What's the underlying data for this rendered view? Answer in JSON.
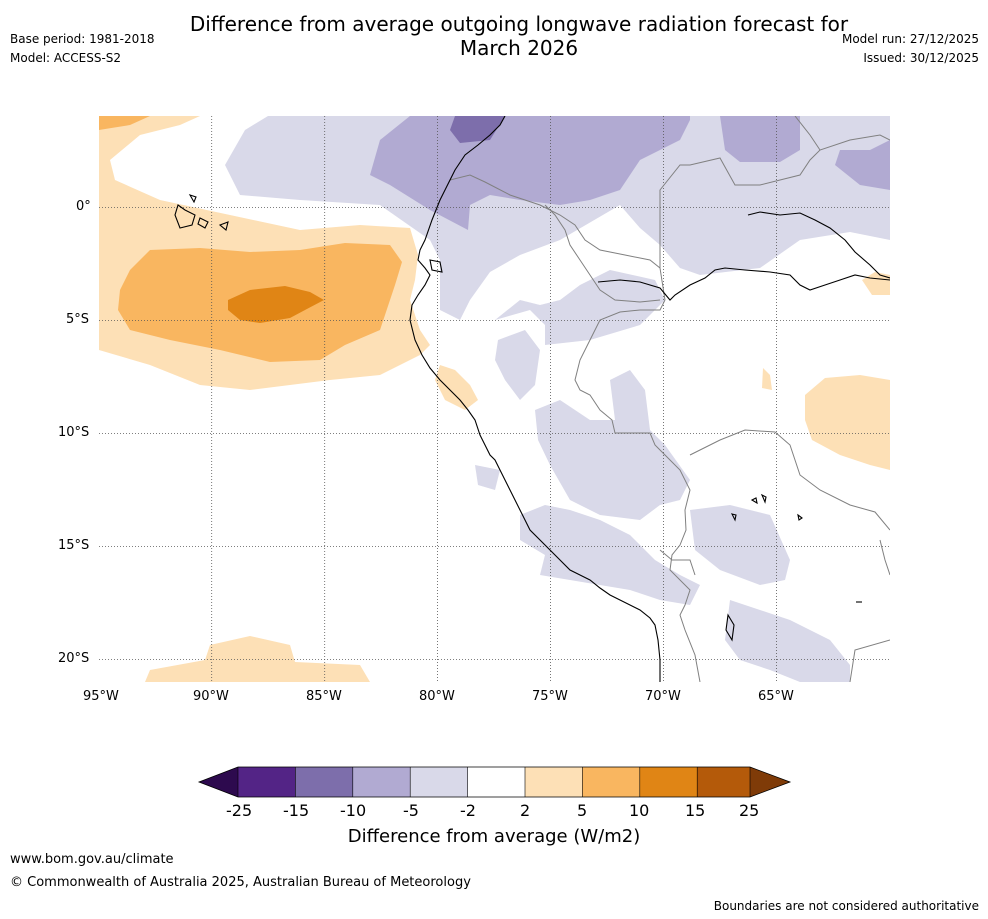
{
  "title_line1": "Difference from average outgoing longwave radiation forecast for",
  "title_line2": "March 2026",
  "meta": {
    "base_period": "Base period: 1981-2018",
    "model": "Model: ACCESS-S2",
    "model_run": "Model run: 27/12/2025",
    "issued": "Issued: 30/12/2025"
  },
  "map": {
    "lon_labels": [
      "95°W",
      "90°W",
      "85°W",
      "80°W",
      "75°W",
      "70°W",
      "65°W"
    ],
    "lat_labels": [
      "0°",
      "5°S",
      "10°S",
      "15°S",
      "20°S"
    ]
  },
  "colorbar": {
    "title": "Difference from average (W/m2)",
    "ticks": [
      "-25",
      "-15",
      "-10",
      "-5",
      "-2",
      "2",
      "5",
      "10",
      "15",
      "25"
    ],
    "colors": {
      "lt_neg25": "#2d0a4e",
      "neg25_neg15": "#532486",
      "neg15_neg10": "#7d6eab",
      "neg10_neg5": "#b1aad2",
      "neg5_neg2": "#d9d9e9",
      "neutral": "#ffffff",
      "pos2_5": "#fde0b6",
      "pos5_10": "#f9b660",
      "pos10_15": "#e08515",
      "pos15_25": "#b45a0a",
      "gt_25": "#7f3b08"
    }
  },
  "footer": {
    "website": "www.bom.gov.au/climate",
    "copyright": "© Commonwealth of Australia 2025, Australian Bureau of Meteorology",
    "disclaimer": "Boundaries are not considered authoritative"
  }
}
